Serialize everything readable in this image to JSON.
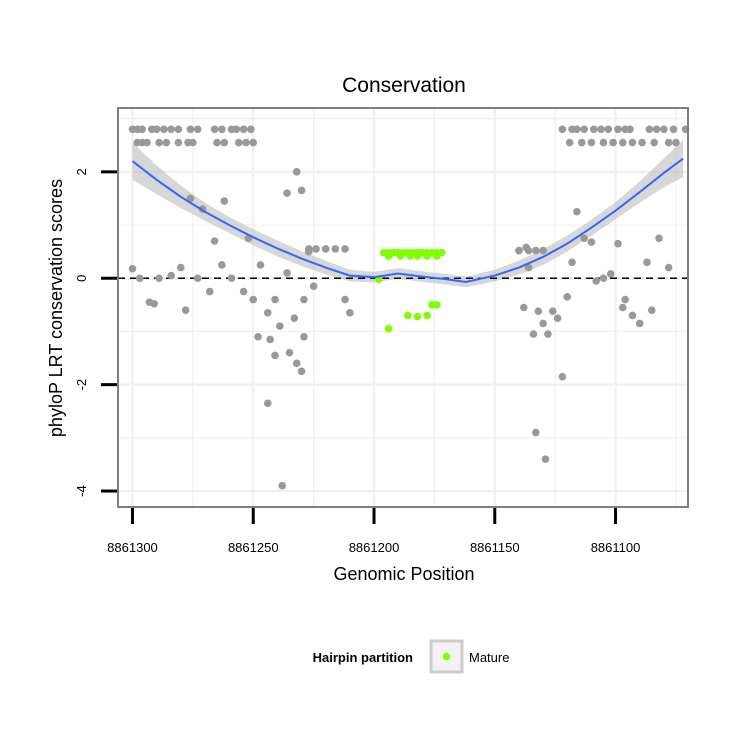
{
  "chart_data": {
    "type": "scatter",
    "title": "Conservation",
    "xlabel": "Genomic Position",
    "ylabel": "phyloP LRT conservation scores",
    "x_reversed": true,
    "xlim": [
      8861070,
      8861306
    ],
    "ylim": [
      -4.3,
      3.2
    ],
    "x_ticks": [
      8861300,
      8861250,
      8861200,
      8861150,
      8861100
    ],
    "x_tick_labels": [
      "8861300",
      "8861250",
      "8861200",
      "8861150",
      "8861100"
    ],
    "y_ticks": [
      2,
      0,
      -2,
      -4
    ],
    "y_tick_labels": [
      "2",
      "0",
      "-2",
      "-4"
    ],
    "reference_line": {
      "y": 0,
      "style": "dashed"
    },
    "grid": true,
    "legend": {
      "title": "Hairpin partition",
      "position": "bottom",
      "entries": [
        {
          "name": "Mature",
          "color": "#7fff00"
        }
      ]
    },
    "colors": {
      "hairpin": "#999999",
      "mature": "#7fff00",
      "smooth": "#3366ff",
      "ribbon": "#bdbdbd",
      "frame": "#7f7f7f",
      "grid": "#f0f0f0"
    },
    "series": [
      {
        "name": "Hairpin",
        "color": "#999999",
        "x": [
          8861300,
          8861298,
          8861296,
          8861292,
          8861290,
          8861287,
          8861284,
          8861281,
          8861276,
          8861273,
          8861266,
          8861263,
          8861259,
          8861257,
          8861254,
          8861251,
          8861298,
          8861296,
          8861294,
          8861289,
          8861286,
          8861281,
          8861277,
          8861275,
          8861265,
          8861262,
          8861256,
          8861253,
          8861250,
          8861122,
          8861118,
          8861116,
          8861113,
          8861109,
          8861106,
          8861103,
          8861099,
          8861096,
          8861094,
          8861086,
          8861083,
          8861080,
          8861076,
          8861071,
          8861119,
          8861114,
          8861110,
          8861105,
          8861101,
          8861097,
          8861093,
          8861089,
          8861084,
          8861078,
          8861075,
          8861227,
          8861224,
          8861220,
          8861216,
          8861212,
          8861140,
          8861136,
          8861133,
          8861130,
          8861300,
          8861297,
          8861293,
          8861291,
          8861289,
          8861284,
          8861280,
          8861278,
          8861276,
          8861273,
          8861271,
          8861268,
          8861266,
          8861263,
          8861262,
          8861259,
          8861254,
          8861252,
          8861250,
          8861248,
          8861247,
          8861244,
          8861243,
          8861241,
          8861239,
          8861236,
          8861235,
          8861233,
          8861232,
          8861230,
          8861229,
          8861227,
          8861225,
          8861212,
          8861210,
          8861140,
          8861137,
          8861134,
          8861132,
          8861130,
          8861128,
          8861126,
          8861124,
          8861122,
          8861120,
          8861118,
          8861116,
          8861113,
          8861110,
          8861108,
          8861105,
          8861102,
          8861099,
          8861096,
          8861093,
          8861090,
          8861087,
          8861085,
          8861082,
          8861078,
          8861244,
          8861236,
          8861232,
          8861230,
          8861229,
          8861238,
          8861138,
          8861133,
          8861129,
          8861241,
          8861136,
          8861097
        ],
        "y": [
          2.8,
          2.8,
          2.8,
          2.8,
          2.8,
          2.8,
          2.8,
          2.8,
          2.8,
          2.8,
          2.8,
          2.8,
          2.8,
          2.8,
          2.8,
          2.8,
          2.55,
          2.55,
          2.55,
          2.55,
          2.55,
          2.55,
          2.55,
          2.55,
          2.55,
          2.55,
          2.55,
          2.55,
          2.55,
          2.8,
          2.8,
          2.8,
          2.8,
          2.8,
          2.8,
          2.8,
          2.8,
          2.8,
          2.8,
          2.8,
          2.8,
          2.8,
          2.8,
          2.8,
          2.55,
          2.55,
          2.55,
          2.55,
          2.55,
          2.55,
          2.55,
          2.55,
          2.55,
          2.55,
          2.55,
          0.55,
          0.55,
          0.55,
          0.55,
          0.55,
          0.52,
          0.52,
          0.52,
          0.52,
          0.18,
          0.0,
          -0.45,
          -0.48,
          0.0,
          0.05,
          0.2,
          -0.6,
          1.5,
          0.0,
          1.3,
          -0.25,
          0.7,
          0.25,
          1.45,
          0.0,
          -0.25,
          0.75,
          -0.4,
          -1.1,
          0.25,
          -0.65,
          -1.15,
          -0.4,
          -0.9,
          0.1,
          -1.4,
          -0.75,
          -1.6,
          -1.75,
          -1.1,
          0.5,
          -0.15,
          -0.4,
          -0.65,
          0.52,
          0.58,
          -1.05,
          -0.62,
          -0.85,
          -1.05,
          -0.62,
          -0.75,
          -1.85,
          -0.35,
          0.3,
          1.25,
          0.75,
          0.68,
          -0.05,
          0.0,
          0.08,
          0.65,
          -0.4,
          -0.7,
          -0.85,
          0.3,
          -0.6,
          0.75,
          0.2,
          -2.35,
          1.6,
          2.0,
          1.65,
          -0.4,
          -3.9,
          -0.55,
          -2.9,
          -3.4,
          -1.45,
          0.2,
          -0.55
        ]
      },
      {
        "name": "Mature",
        "color": "#7fff00",
        "x": [
          8861196,
          8861194,
          8861192,
          8861190,
          8861188,
          8861186,
          8861184,
          8861182,
          8861180,
          8861178,
          8861176,
          8861174,
          8861172,
          8861194,
          8861189,
          8861185,
          8861182,
          8861178,
          8861174,
          8861194,
          8861186,
          8861182,
          8861178,
          8861176,
          8861174,
          8861198
        ],
        "y": [
          0.48,
          0.48,
          0.48,
          0.48,
          0.48,
          0.48,
          0.48,
          0.48,
          0.48,
          0.48,
          0.48,
          0.48,
          0.48,
          0.42,
          0.42,
          0.42,
          0.42,
          0.42,
          0.42,
          -0.95,
          -0.7,
          -0.72,
          -0.7,
          -0.5,
          -0.5,
          -0.02
        ]
      }
    ],
    "smooth": {
      "x": [
        8861300,
        8861290,
        8861280,
        8861270,
        8861260,
        8861250,
        8861240,
        8861230,
        8861220,
        8861210,
        8861200,
        8861190,
        8861180,
        8861170,
        8861162,
        8861150,
        8861140,
        8861130,
        8861120,
        8861110,
        8861100,
        8861090,
        8861080,
        8861072
      ],
      "y": [
        2.2,
        1.85,
        1.53,
        1.25,
        1.0,
        0.77,
        0.56,
        0.37,
        0.2,
        0.05,
        0.02,
        0.09,
        0.03,
        -0.02,
        -0.07,
        0.05,
        0.2,
        0.4,
        0.65,
        0.95,
        1.27,
        1.62,
        1.98,
        2.25
      ],
      "se": [
        0.35,
        0.27,
        0.21,
        0.17,
        0.15,
        0.15,
        0.15,
        0.14,
        0.13,
        0.11,
        0.1,
        0.1,
        0.1,
        0.1,
        0.1,
        0.11,
        0.13,
        0.15,
        0.15,
        0.15,
        0.16,
        0.2,
        0.27,
        0.35
      ]
    }
  }
}
